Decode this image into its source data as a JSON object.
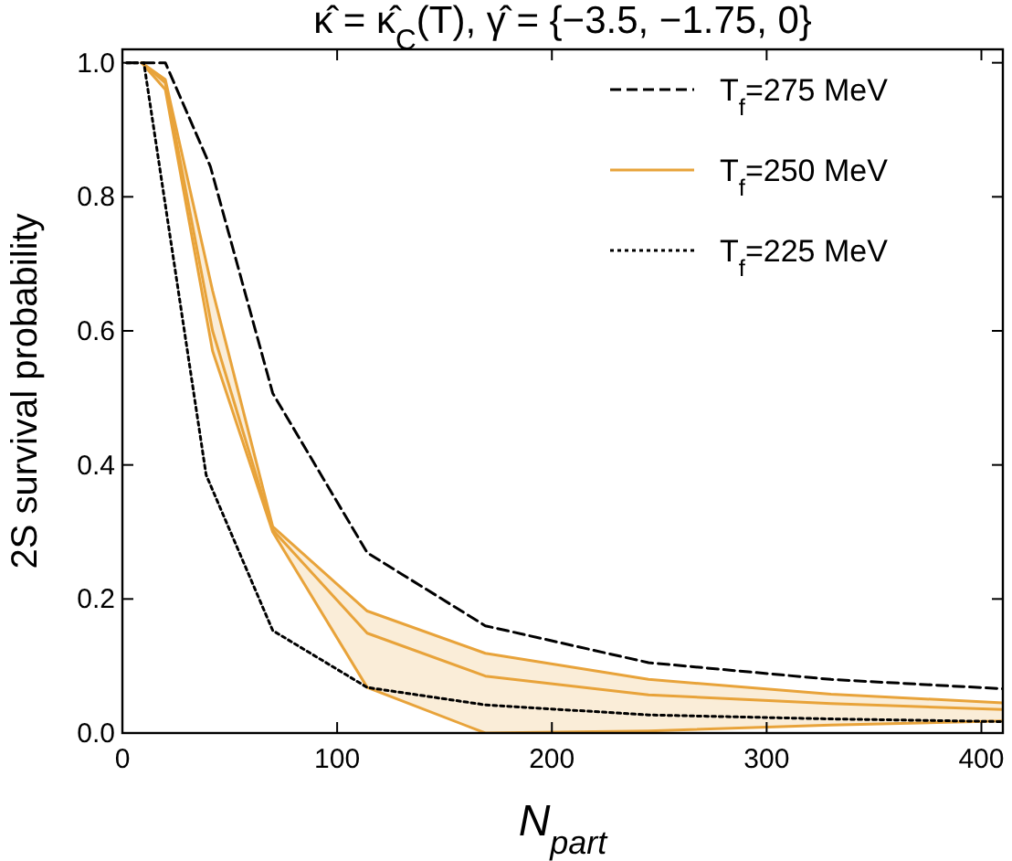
{
  "chart_data": {
    "type": "line",
    "title": "κ̂ = κ̂$_{C}$(T), γ̂ = {−3.5, −1.75, 0}",
    "xlabel": "N$_{part}$",
    "ylabel": "2S survival probability",
    "xlim": [
      0,
      410
    ],
    "ylim": [
      0,
      1.02
    ],
    "xticks": [
      0,
      100,
      200,
      300,
      400
    ],
    "yticks": [
      {
        "value": 0,
        "label": "0.0"
      },
      {
        "value": 0.2,
        "label": "0.2"
      },
      {
        "value": 0.4,
        "label": "0.4"
      },
      {
        "value": 0.6,
        "label": "0.6"
      },
      {
        "value": 0.8,
        "label": "0.8"
      },
      {
        "value": 1,
        "label": "1.0"
      }
    ],
    "legend": "top right",
    "grid": false,
    "series": [
      {
        "name": "T$_{f}$=275 MeV",
        "color": "#000000",
        "line_style": "dashed",
        "x": [
          2,
          20,
          41,
          70,
          114,
          169,
          245,
          330,
          410
        ],
        "values": [
          1.0,
          1.0,
          0.845,
          0.507,
          0.269,
          0.16,
          0.105,
          0.08,
          0.066
        ]
      },
      {
        "name": "T$_{f}$=250 MeV",
        "color": "#e8a33a",
        "line_style": "solid",
        "x": [
          9,
          20,
          42,
          70,
          114,
          169,
          245,
          330,
          410
        ],
        "values": [
          1.0,
          0.97,
          0.6,
          0.303,
          0.149,
          0.085,
          0.057,
          0.044,
          0.035
        ],
        "lower": [
          1.0,
          0.96,
          0.57,
          0.3,
          0.068,
          0.0,
          0.003,
          0.012,
          0.018
        ],
        "upper": [
          1.0,
          0.975,
          0.66,
          0.308,
          0.182,
          0.119,
          0.08,
          0.058,
          0.045
        ]
      },
      {
        "color": "#e8a33a",
        "line_style": "solid",
        "x": [
          9,
          20,
          42,
          70,
          114,
          169,
          245,
          330,
          410
        ],
        "values": [
          1.0,
          0.96,
          0.57,
          0.3,
          0.068,
          0.0,
          0.003,
          0.012,
          0.018
        ]
      },
      {
        "color": "#e8a33a",
        "line_style": "solid",
        "x": [
          9,
          20,
          42,
          70,
          114,
          169,
          245,
          330,
          410
        ],
        "values": [
          1.0,
          0.975,
          0.66,
          0.308,
          0.182,
          0.119,
          0.08,
          0.058,
          0.045
        ]
      },
      {
        "name": "T$_{f}$=225 MeV",
        "color": "#000000",
        "line_style": "dotted",
        "x": [
          2,
          10,
          39,
          70,
          114,
          169,
          245,
          330,
          410
        ],
        "values": [
          1.0,
          1.0,
          0.385,
          0.153,
          0.068,
          0.042,
          0.027,
          0.021,
          0.017
        ]
      }
    ]
  }
}
